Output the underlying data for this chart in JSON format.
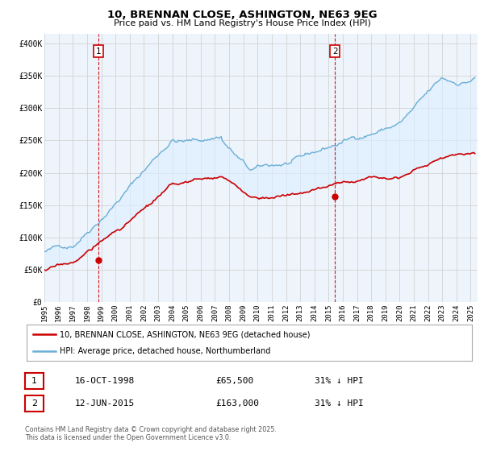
{
  "title1": "10, BRENNAN CLOSE, ASHINGTON, NE63 9EG",
  "title2": "Price paid vs. HM Land Registry's House Price Index (HPI)",
  "ylabel_ticks": [
    "£0",
    "£50K",
    "£100K",
    "£150K",
    "£200K",
    "£250K",
    "£300K",
    "£350K",
    "£400K"
  ],
  "ylabel_values": [
    0,
    50000,
    100000,
    150000,
    200000,
    250000,
    300000,
    350000,
    400000
  ],
  "ylim": [
    0,
    415000
  ],
  "xlim_start": 1995.0,
  "xlim_end": 2025.5,
  "hpi_color": "#6baed6",
  "hpi_fill_color": "#ddeeff",
  "price_color": "#cc0000",
  "marker1_x": 1998.79,
  "marker1_y": 65500,
  "marker2_x": 2015.45,
  "marker2_y": 163000,
  "vline1_x": 1998.79,
  "vline2_x": 2015.45,
  "legend_label1": "10, BRENNAN CLOSE, ASHINGTON, NE63 9EG (detached house)",
  "legend_label2": "HPI: Average price, detached house, Northumberland",
  "annotation1_label": "1",
  "annotation2_label": "2",
  "table_row1": [
    "1",
    "16-OCT-1998",
    "£65,500",
    "31% ↓ HPI"
  ],
  "table_row2": [
    "2",
    "12-JUN-2015",
    "£163,000",
    "31% ↓ HPI"
  ],
  "footer": "Contains HM Land Registry data © Crown copyright and database right 2025.\nThis data is licensed under the Open Government Licence v3.0.",
  "background_color": "#ffffff",
  "grid_color": "#cccccc"
}
